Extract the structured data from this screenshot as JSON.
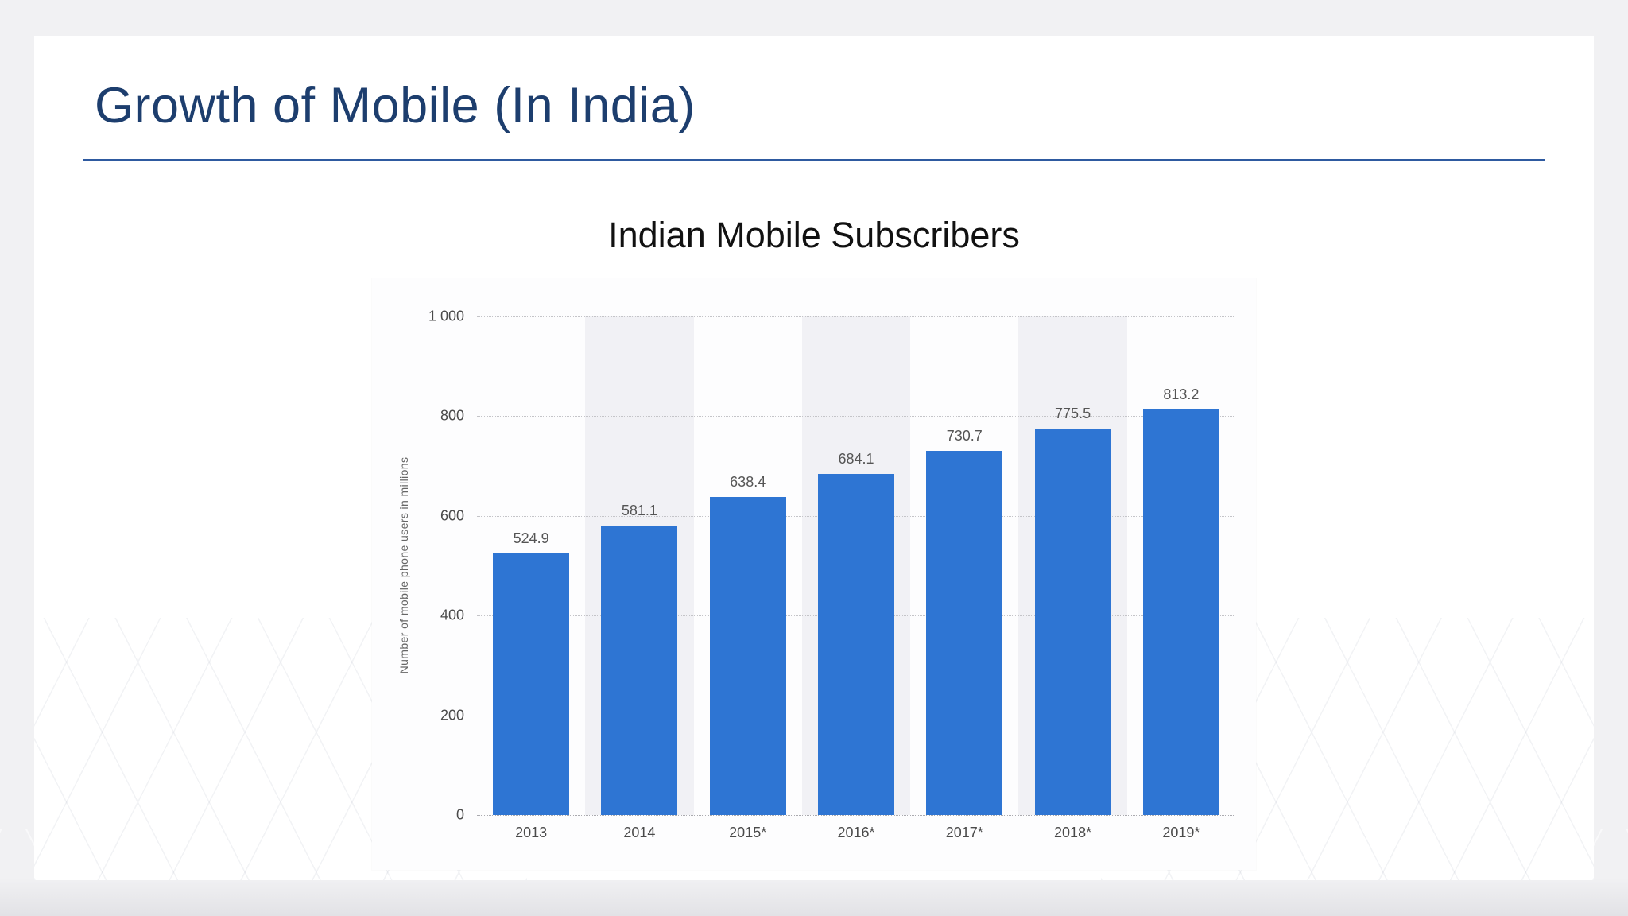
{
  "slide": {
    "title": "Growth of Mobile (In India)"
  },
  "chart_data": {
    "type": "bar",
    "title": "Indian Mobile Subscribers",
    "categories": [
      "2013",
      "2014",
      "2015*",
      "2016*",
      "2017*",
      "2018*",
      "2019*"
    ],
    "values": [
      524.9,
      581.1,
      638.4,
      684.1,
      730.7,
      775.5,
      813.2
    ],
    "value_labels": [
      "524.9",
      "581.1",
      "638.4",
      "684.1",
      "730.7",
      "775.5",
      "813.2"
    ],
    "xlabel": "",
    "ylabel": "Number of mobile phone users in millions",
    "ylim": [
      0,
      1000
    ],
    "yticks": [
      0,
      200,
      400,
      600,
      800,
      1000
    ],
    "ytick_labels": [
      "0",
      "200",
      "400",
      "600",
      "800",
      "1 000"
    ],
    "grid": true,
    "legend": "none",
    "bar_color": "#2e75d3"
  },
  "colors": {
    "slide_title": "#1d3e6e",
    "divider": "#2e5aa0",
    "bar": "#2e75d3",
    "band_alt": "#f1f1f5"
  }
}
